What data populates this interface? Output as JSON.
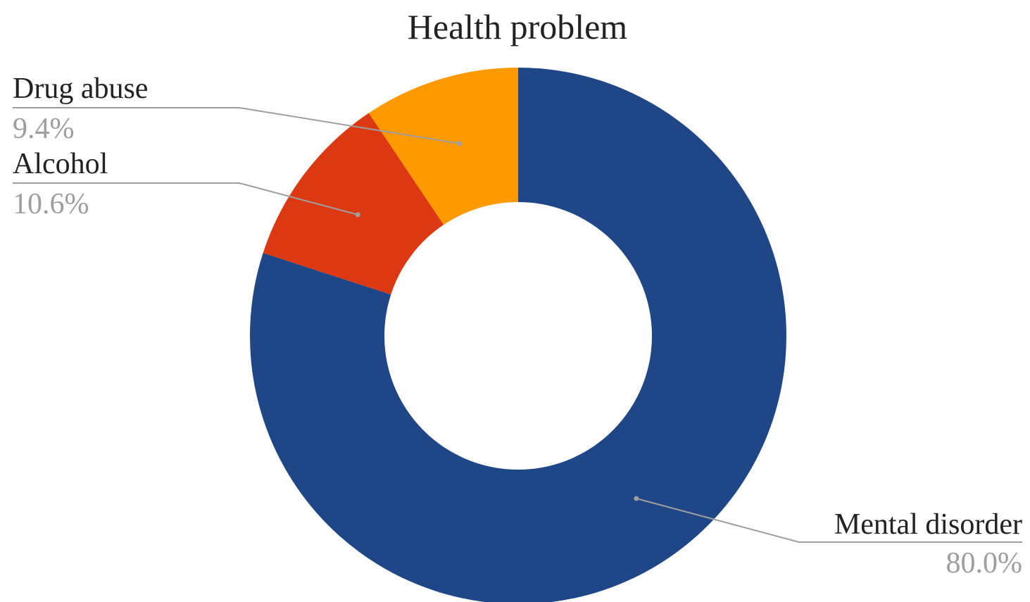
{
  "chart_data": {
    "type": "pie",
    "donut": true,
    "title": "Health problem",
    "categories": [
      "Mental disorder",
      "Alcohol",
      "Drug abuse"
    ],
    "values": [
      80.0,
      10.6,
      9.4
    ],
    "value_labels": [
      "80.0%",
      "10.6%",
      "9.4%"
    ],
    "colors": [
      "#1f4788",
      "#dc3912",
      "#ff9900"
    ],
    "start_angle": "12 o'clock",
    "direction": "clockwise",
    "legend": "none (labels with leader lines)"
  }
}
